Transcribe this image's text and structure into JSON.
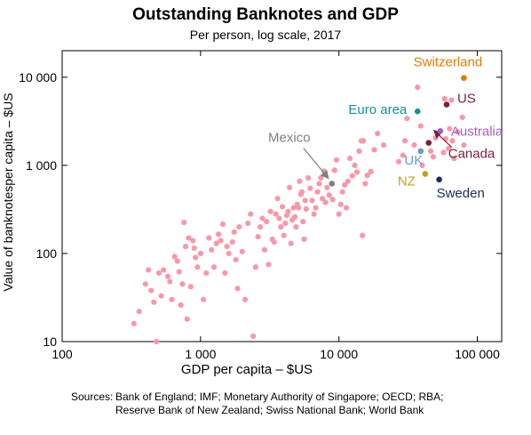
{
  "chart_data": {
    "type": "scatter",
    "title": "Outstanding Banknotes and GDP",
    "subtitle": "Per person, log scale, 2017",
    "xlabel": "GDP per capita – $US",
    "ylabel": "Value of banknotesper capita – $US",
    "x_scale": "log",
    "y_scale": "log",
    "xlim": [
      100,
      150000
    ],
    "ylim": [
      10,
      20000
    ],
    "x_ticks": [
      100,
      1000,
      10000,
      100000
    ],
    "x_tick_labels": [
      "100",
      "1 000",
      "10 000",
      "100 000"
    ],
    "y_ticks": [
      10,
      100,
      1000,
      10000
    ],
    "y_tick_labels": [
      "10",
      "100",
      "1 000",
      "10 000"
    ],
    "grid": false,
    "colors": {
      "other": "#f898a8"
    },
    "highlighted": [
      {
        "label": "Switzerland",
        "x": 80000,
        "y": 9800,
        "color": "#e07b00"
      },
      {
        "label": "US",
        "x": 60000,
        "y": 4900,
        "color": "#7a1f3a"
      },
      {
        "label": "Euro area",
        "x": 37000,
        "y": 4100,
        "color": "#168f98"
      },
      {
        "label": "Australia",
        "x": 54000,
        "y": 2450,
        "color": "#a35fc2"
      },
      {
        "label": "Mexico",
        "x": 8900,
        "y": 620,
        "color": "#808080"
      },
      {
        "label": "UK",
        "x": 39000,
        "y": 1450,
        "color": "#6a9ac8"
      },
      {
        "label": "Canada",
        "x": 44500,
        "y": 1800,
        "color": "#7a1f3a"
      },
      {
        "label": "NZ",
        "x": 42000,
        "y": 800,
        "color": "#c8a020"
      },
      {
        "label": "Sweden",
        "x": 53000,
        "y": 690,
        "color": "#1a2a5a"
      }
    ],
    "others": [
      [
        330,
        16
      ],
      [
        360,
        22
      ],
      [
        400,
        45
      ],
      [
        420,
        65
      ],
      [
        440,
        38
      ],
      [
        460,
        28
      ],
      [
        480,
        10
      ],
      [
        500,
        60
      ],
      [
        520,
        33
      ],
      [
        540,
        65
      ],
      [
        580,
        55
      ],
      [
        600,
        48
      ],
      [
        620,
        30
      ],
      [
        650,
        92
      ],
      [
        680,
        82
      ],
      [
        700,
        62
      ],
      [
        720,
        26
      ],
      [
        740,
        45
      ],
      [
        760,
        225
      ],
      [
        780,
        120
      ],
      [
        800,
        18
      ],
      [
        820,
        150
      ],
      [
        850,
        42
      ],
      [
        880,
        140
      ],
      [
        900,
        115
      ],
      [
        920,
        90
      ],
      [
        950,
        70
      ],
      [
        1000,
        100
      ],
      [
        1050,
        30
      ],
      [
        1100,
        60
      ],
      [
        1150,
        150
      ],
      [
        1200,
        110
      ],
      [
        1250,
        70
      ],
      [
        1300,
        130
      ],
      [
        1350,
        165
      ],
      [
        1400,
        140
      ],
      [
        1450,
        215
      ],
      [
        1500,
        60
      ],
      [
        1550,
        120
      ],
      [
        1600,
        100
      ],
      [
        1700,
        135
      ],
      [
        1750,
        175
      ],
      [
        1800,
        85
      ],
      [
        1850,
        40
      ],
      [
        1900,
        200
      ],
      [
        2000,
        105
      ],
      [
        2100,
        30
      ],
      [
        2200,
        220
      ],
      [
        2300,
        280
      ],
      [
        2400,
        11.5
      ],
      [
        2500,
        70
      ],
      [
        2600,
        155
      ],
      [
        2700,
        200
      ],
      [
        2800,
        250
      ],
      [
        2900,
        110
      ],
      [
        3000,
        230
      ],
      [
        3100,
        75
      ],
      [
        3200,
        300
      ],
      [
        3300,
        145
      ],
      [
        3400,
        135
      ],
      [
        3500,
        280
      ],
      [
        3600,
        420
      ],
      [
        3700,
        250
      ],
      [
        3800,
        200
      ],
      [
        3900,
        340
      ],
      [
        4000,
        160
      ],
      [
        4100,
        220
      ],
      [
        4200,
        270
      ],
      [
        4300,
        300
      ],
      [
        4400,
        560
      ],
      [
        4500,
        130
      ],
      [
        4600,
        240
      ],
      [
        4700,
        330
      ],
      [
        4800,
        260
      ],
      [
        4900,
        200
      ],
      [
        5000,
        360
      ],
      [
        5100,
        330
      ],
      [
        5200,
        660
      ],
      [
        5300,
        470
      ],
      [
        5400,
        500
      ],
      [
        5500,
        230
      ],
      [
        5600,
        145
      ],
      [
        5700,
        400
      ],
      [
        5800,
        320
      ],
      [
        6000,
        720
      ],
      [
        6200,
        550
      ],
      [
        6400,
        400
      ],
      [
        6600,
        280
      ],
      [
        6800,
        330
      ],
      [
        7000,
        500
      ],
      [
        7200,
        620
      ],
      [
        7400,
        720
      ],
      [
        7600,
        420
      ],
      [
        7800,
        860
      ],
      [
        8000,
        380
      ],
      [
        8200,
        560
      ],
      [
        8500,
        460
      ],
      [
        9000,
        410
      ],
      [
        9300,
        880
      ],
      [
        9600,
        1150
      ],
      [
        10000,
        280
      ],
      [
        10300,
        360
      ],
      [
        10600,
        500
      ],
      [
        11000,
        600
      ],
      [
        11300,
        330
      ],
      [
        11600,
        660
      ],
      [
        12000,
        1200
      ],
      [
        12500,
        760
      ],
      [
        13000,
        1000
      ],
      [
        13500,
        840
      ],
      [
        14000,
        1450
      ],
      [
        14500,
        1900
      ],
      [
        15000,
        1900
      ],
      [
        15500,
        620
      ],
      [
        16000,
        770
      ],
      [
        14800,
        160
      ],
      [
        17000,
        850
      ],
      [
        18000,
        1500
      ],
      [
        19000,
        2300
      ],
      [
        21000,
        1700
      ],
      [
        27000,
        1100
      ],
      [
        29000,
        1300
      ],
      [
        30000,
        1900
      ],
      [
        31000,
        3400
      ],
      [
        35000,
        1700
      ],
      [
        37000,
        7700
      ],
      [
        39000,
        2800
      ],
      [
        40000,
        1000
      ],
      [
        48000,
        1250
      ],
      [
        50000,
        2050
      ],
      [
        57000,
        1400
      ],
      [
        59000,
        2000
      ],
      [
        62000,
        1550
      ],
      [
        66000,
        1900
      ],
      [
        72000,
        2400
      ],
      [
        78000,
        3500
      ],
      [
        63000,
        2600
      ],
      [
        58000,
        5700
      ],
      [
        65000,
        5500
      ],
      [
        46000,
        1450
      ],
      [
        80000,
        1700
      ],
      [
        68000,
        1200
      ]
    ]
  },
  "sources": {
    "label": "Sources:",
    "text": "Bank of England; IMF; Monetary Authority of Singapore; OECD; RBA; Reserve Bank of New Zealand; Swiss National Bank; World Bank"
  }
}
